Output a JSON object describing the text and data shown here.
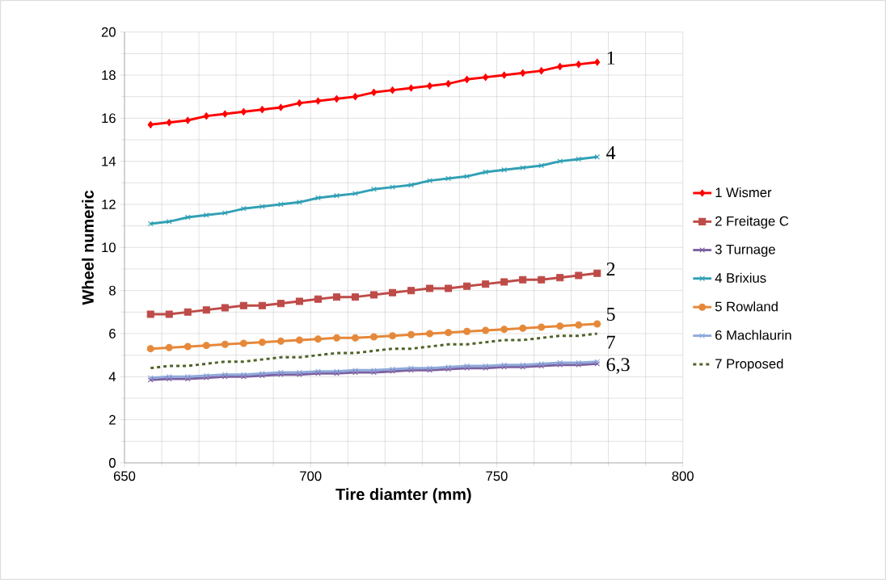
{
  "chart_data": {
    "type": "line",
    "xlabel": "Tire diamter (mm)",
    "ylabel": "Wheel numeric",
    "x": [
      657,
      662,
      667,
      672,
      677,
      682,
      687,
      692,
      697,
      702,
      707,
      712,
      717,
      722,
      727,
      732,
      737,
      742,
      747,
      752,
      757,
      762,
      767,
      772,
      777
    ],
    "series": [
      {
        "name": "1 Wismer",
        "color": "#ff0000",
        "marker": "diamond",
        "values": [
          15.7,
          15.8,
          15.9,
          16.1,
          16.2,
          16.3,
          16.4,
          16.5,
          16.7,
          16.8,
          16.9,
          17.0,
          17.2,
          17.3,
          17.4,
          17.5,
          17.6,
          17.8,
          17.9,
          18.0,
          18.1,
          18.2,
          18.4,
          18.5,
          18.6
        ]
      },
      {
        "name": "2 Freitage C",
        "color": "#be4b48",
        "marker": "square",
        "values": [
          6.9,
          6.9,
          7.0,
          7.1,
          7.2,
          7.3,
          7.3,
          7.4,
          7.5,
          7.6,
          7.7,
          7.7,
          7.8,
          7.9,
          8.0,
          8.1,
          8.1,
          8.2,
          8.3,
          8.4,
          8.5,
          8.5,
          8.6,
          8.7,
          8.8
        ]
      },
      {
        "name": "3 Turnage",
        "color": "#7d60a0",
        "marker": "cross",
        "values": [
          3.85,
          3.9,
          3.9,
          3.95,
          4.0,
          4.0,
          4.05,
          4.1,
          4.1,
          4.15,
          4.15,
          4.2,
          4.2,
          4.25,
          4.3,
          4.3,
          4.35,
          4.4,
          4.4,
          4.45,
          4.45,
          4.5,
          4.55,
          4.55,
          4.6
        ]
      },
      {
        "name": "4 Brixius",
        "color": "#31a0b5",
        "marker": "cross",
        "values": [
          11.1,
          11.2,
          11.4,
          11.5,
          11.6,
          11.8,
          11.9,
          12.0,
          12.1,
          12.3,
          12.4,
          12.5,
          12.7,
          12.8,
          12.9,
          13.1,
          13.2,
          13.3,
          13.5,
          13.6,
          13.7,
          13.8,
          14.0,
          14.1,
          14.2
        ]
      },
      {
        "name": "5 Rowland",
        "color": "#e6883a",
        "marker": "circle",
        "values": [
          5.3,
          5.35,
          5.4,
          5.45,
          5.5,
          5.55,
          5.6,
          5.65,
          5.7,
          5.75,
          5.8,
          5.8,
          5.85,
          5.9,
          5.95,
          6.0,
          6.05,
          6.1,
          6.15,
          6.2,
          6.25,
          6.3,
          6.35,
          6.4,
          6.45
        ]
      },
      {
        "name": "6 Machlaurin",
        "color": "#8faadc",
        "marker": "cross",
        "values": [
          3.95,
          4.0,
          4.0,
          4.05,
          4.1,
          4.1,
          4.15,
          4.2,
          4.2,
          4.25,
          4.25,
          4.3,
          4.3,
          4.35,
          4.4,
          4.4,
          4.45,
          4.5,
          4.5,
          4.55,
          4.55,
          4.6,
          4.65,
          4.65,
          4.7
        ]
      },
      {
        "name": "7 Proposed",
        "color": "#4f6228",
        "marker": "none",
        "line_style": "dashed",
        "values": [
          4.4,
          4.5,
          4.5,
          4.6,
          4.7,
          4.7,
          4.8,
          4.9,
          4.9,
          5.0,
          5.1,
          5.1,
          5.2,
          5.3,
          5.3,
          5.4,
          5.5,
          5.5,
          5.6,
          5.7,
          5.7,
          5.8,
          5.9,
          5.9,
          6.0
        ]
      }
    ],
    "annotations": [
      "1",
      "4",
      "2",
      "5",
      "7",
      "6,3"
    ],
    "xlim": [
      650,
      800
    ],
    "xticks": [
      650,
      700,
      750,
      800
    ],
    "ylim": [
      0,
      20
    ],
    "yticks": [
      0,
      2,
      4,
      6,
      8,
      10,
      12,
      14,
      16,
      18,
      20
    ],
    "grid": true,
    "legend": "right"
  }
}
